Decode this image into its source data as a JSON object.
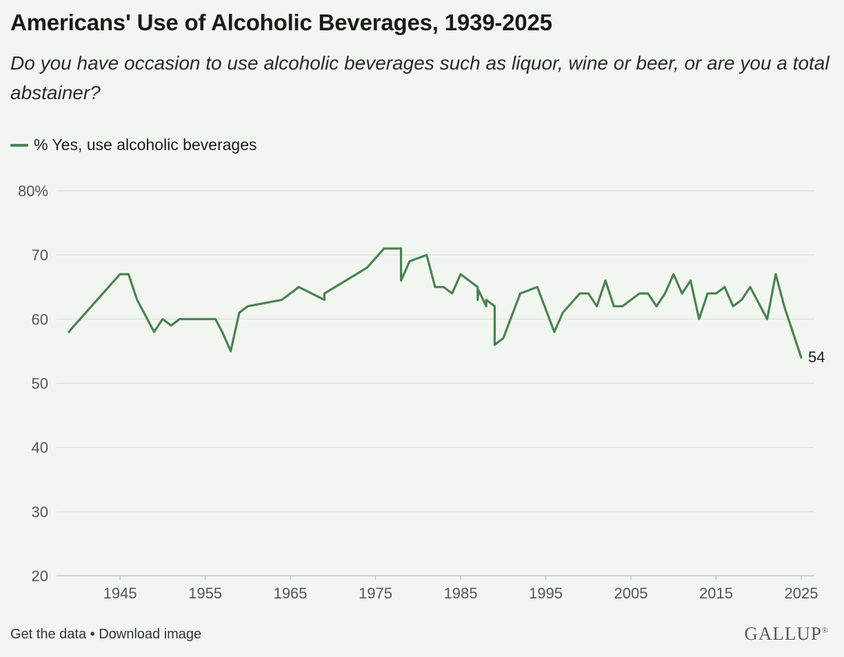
{
  "chart_data": {
    "type": "line",
    "title": "Americans' Use of Alcoholic Beverages, 1939-2025",
    "subtitle": "Do you have occasion to use alcoholic beverages such as liquor, wine or beer, or are you a total abstainer?",
    "series": [
      {
        "name": "% Yes, use alcoholic beverages",
        "color": "#4a8252",
        "end_label": "54",
        "points": [
          [
            1939,
            58
          ],
          [
            1939.3,
            58.5
          ],
          [
            1945,
            67
          ],
          [
            1946,
            67
          ],
          [
            1947,
            63
          ],
          [
            1949,
            58
          ],
          [
            1950,
            60
          ],
          [
            1951,
            59
          ],
          [
            1952,
            60
          ],
          [
            1956.2,
            60
          ],
          [
            1957,
            58
          ],
          [
            1958,
            55
          ],
          [
            1959,
            61
          ],
          [
            1960,
            62
          ],
          [
            1964,
            63
          ],
          [
            1966,
            65
          ],
          [
            1969,
            63
          ],
          [
            1969,
            64
          ],
          [
            1974,
            68
          ],
          [
            1976,
            71
          ],
          [
            1978,
            71
          ],
          [
            1978,
            66
          ],
          [
            1979,
            69
          ],
          [
            1981,
            70
          ],
          [
            1982,
            65
          ],
          [
            1983,
            65
          ],
          [
            1984,
            64
          ],
          [
            1985,
            67
          ],
          [
            1987,
            65
          ],
          [
            1987,
            63
          ],
          [
            1987.1,
            64.5
          ],
          [
            1988,
            62
          ],
          [
            1988,
            63
          ],
          [
            1989,
            62
          ],
          [
            1989,
            56
          ],
          [
            1990,
            57
          ],
          [
            1992,
            64
          ],
          [
            1994,
            65
          ],
          [
            1996,
            58
          ],
          [
            1997,
            61
          ],
          [
            1999,
            64
          ],
          [
            2000,
            64
          ],
          [
            2001,
            62
          ],
          [
            2002,
            66
          ],
          [
            2003,
            62
          ],
          [
            2004,
            62
          ],
          [
            2006,
            64
          ],
          [
            2007,
            64
          ],
          [
            2008,
            62
          ],
          [
            2009,
            64
          ],
          [
            2010,
            67
          ],
          [
            2011,
            64
          ],
          [
            2012,
            66
          ],
          [
            2013,
            60
          ],
          [
            2014,
            64
          ],
          [
            2015,
            64
          ],
          [
            2016,
            65
          ],
          [
            2017,
            62
          ],
          [
            2018,
            63
          ],
          [
            2019,
            65
          ],
          [
            2021,
            60
          ],
          [
            2022,
            67
          ],
          [
            2023,
            62
          ],
          [
            2025,
            54
          ]
        ]
      }
    ],
    "xlim": [
      1939,
      2025
    ],
    "ylim": [
      20,
      80
    ],
    "x_ticks": [
      1945,
      1955,
      1965,
      1975,
      1985,
      1995,
      2005,
      2015,
      2025
    ],
    "y_ticks": [
      {
        "value": 20,
        "label": "20"
      },
      {
        "value": 30,
        "label": "30"
      },
      {
        "value": 40,
        "label": "40"
      },
      {
        "value": 50,
        "label": "50"
      },
      {
        "value": 60,
        "label": "60"
      },
      {
        "value": 70,
        "label": "70"
      },
      {
        "value": 80,
        "label": "80%"
      }
    ],
    "grid": true,
    "legend": "top-left"
  },
  "footer": {
    "get_data": "Get the data",
    "separator": " • ",
    "download": "Download image"
  },
  "brand": {
    "name": "GALLUP",
    "mark": "®"
  }
}
